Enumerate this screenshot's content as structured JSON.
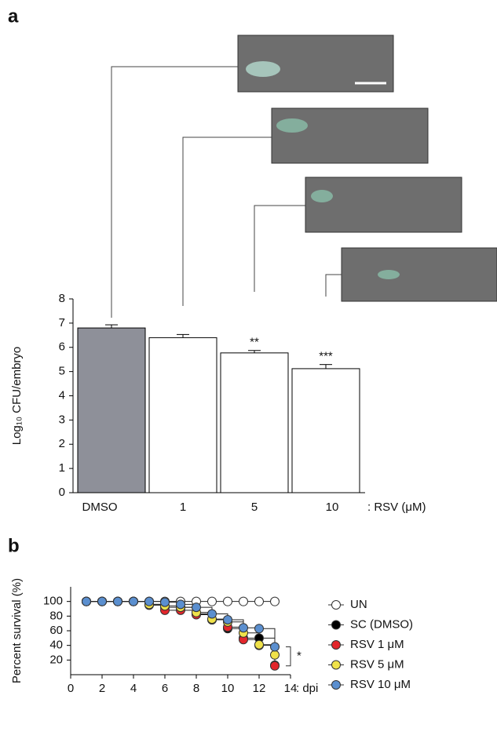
{
  "chart_data": [
    {
      "type": "bar",
      "panel": "a",
      "ylabel": "Log₁₀ CFU/embryo",
      "xlabel": ": RSV (μM)",
      "categories": [
        "DMSO",
        "1",
        "5",
        "10"
      ],
      "values": [
        6.8,
        6.4,
        5.77,
        5.12
      ],
      "errors": [
        0.13,
        0.13,
        0.1,
        0.17
      ],
      "colors": [
        "#8e9099",
        "#ffffff",
        "#ffffff",
        "#ffffff"
      ],
      "significance": [
        null,
        null,
        "**",
        "***"
      ],
      "ylim": [
        0,
        8
      ],
      "yticks": [
        0,
        1,
        2,
        3,
        4,
        5,
        6,
        7,
        8
      ]
    },
    {
      "type": "survival",
      "panel": "b",
      "ylabel": "Percent survival (%)",
      "xlabel": ": dpi",
      "x": [
        1,
        2,
        3,
        4,
        5,
        6,
        7,
        8,
        9,
        10,
        11,
        12,
        13
      ],
      "series": [
        {
          "name": "UN",
          "color": "#ffffff",
          "values": [
            100,
            100,
            100,
            100,
            100,
            100,
            100,
            100,
            100,
            100,
            100,
            100,
            100
          ]
        },
        {
          "name": "SC (DMSO)",
          "color": "#000000",
          "values": [
            100,
            100,
            100,
            100,
            96,
            92,
            92,
            83,
            75,
            63,
            50,
            50,
            13
          ]
        },
        {
          "name": "RSV 1 μM",
          "color": "#e3262b",
          "values": [
            100,
            100,
            100,
            100,
            95,
            88,
            88,
            82,
            75,
            65,
            48,
            40,
            12
          ]
        },
        {
          "name": "RSV 5 μM",
          "color": "#f0e24a",
          "values": [
            100,
            100,
            100,
            100,
            96,
            94,
            92,
            85,
            76,
            72,
            57,
            41,
            27
          ]
        },
        {
          "name": "RSV 10 μM",
          "color": "#5b8fcf",
          "values": [
            100,
            100,
            100,
            100,
            100,
            99,
            96,
            92,
            83,
            75,
            64,
            63,
            38
          ]
        }
      ],
      "annotation": "*",
      "xlim": [
        0,
        14
      ],
      "xticks": [
        0,
        2,
        4,
        6,
        8,
        10,
        12,
        14
      ],
      "ylim": [
        0,
        120
      ],
      "yticks": [
        20,
        40,
        60,
        80,
        100
      ]
    }
  ]
}
